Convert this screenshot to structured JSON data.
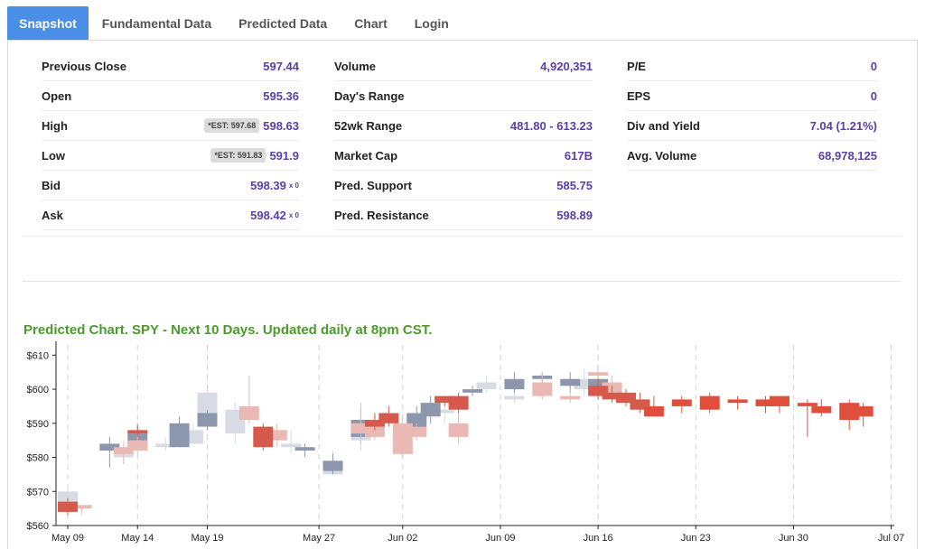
{
  "tabs": [
    {
      "label": "Snapshot",
      "active": true
    },
    {
      "label": "Fundamental Data",
      "active": false
    },
    {
      "label": "Predicted Data",
      "active": false
    },
    {
      "label": "Chart",
      "active": false
    },
    {
      "label": "Login",
      "active": false
    }
  ],
  "snapshot": {
    "col1": [
      {
        "label": "Previous Close",
        "value": "597.44"
      },
      {
        "label": "Open",
        "value": "595.36"
      },
      {
        "label": "High",
        "value": "598.63",
        "est": "*EST: 597.68"
      },
      {
        "label": "Low",
        "value": "591.9",
        "est": "*EST: 591.83"
      },
      {
        "label": "Bid",
        "value": "598.39",
        "sub": "x 0"
      },
      {
        "label": "Ask",
        "value": "598.42",
        "sub": "x 0"
      }
    ],
    "col2": [
      {
        "label": "Volume",
        "value": "4,920,351"
      },
      {
        "label": "Day's Range",
        "value": ""
      },
      {
        "label": "52wk Range",
        "value": "481.80 - 613.23"
      },
      {
        "label": "Market Cap",
        "value": "617B"
      },
      {
        "label": "Pred. Support",
        "value": "585.75"
      },
      {
        "label": "Pred. Resistance",
        "value": "598.89"
      }
    ],
    "col3": [
      {
        "label": "P/E",
        "value": "0"
      },
      {
        "label": "EPS",
        "value": "0"
      },
      {
        "label": "Div and Yield",
        "value": "7.04 (1.21%)"
      },
      {
        "label": "Avg. Volume",
        "value": "68,978,125"
      }
    ]
  },
  "chart_title": "Predicted Chart. SPY - Next 10 Days. Updated daily at 8pm CST.",
  "chart_data": {
    "type": "candlestick",
    "title": "Predicted Chart. SPY - Next 10 Days. Updated daily at 8pm CST.",
    "y_ticks": [
      "$560",
      "$570",
      "$580",
      "$590",
      "$600",
      "$610"
    ],
    "ylim": [
      560,
      613
    ],
    "x_ticks": [
      {
        "label": "May 09",
        "day": 0
      },
      {
        "label": "May 14",
        "day": 5
      },
      {
        "label": "May 19",
        "day": 10
      },
      {
        "label": "May 27",
        "day": 18
      },
      {
        "label": "Jun 02",
        "day": 24
      },
      {
        "label": "Jun 09",
        "day": 31
      },
      {
        "label": "Jun 16",
        "day": 38
      },
      {
        "label": "Jun 23",
        "day": 45
      },
      {
        "label": "Jun 30",
        "day": 52
      },
      {
        "label": "Jul 07",
        "day": 59
      }
    ],
    "dashed_grid_days": [
      0,
      5,
      10,
      18,
      24,
      31,
      38,
      45,
      52,
      59
    ],
    "colors": {
      "blue": "#8c97ad",
      "light_blue": "#d7dbe3",
      "red": "#d55a4c",
      "light_red": "#eab9b3",
      "bright_red": "#e04f3c"
    },
    "series": [
      {
        "name": "",
        "color": "light_blue",
        "candles": [
          {
            "day": 0,
            "o": 566,
            "c": 570,
            "h": 571,
            "l": 563
          },
          {
            "day": 1,
            "o": 565,
            "c": 566,
            "h": 566,
            "l": 563
          },
          {
            "day": 4,
            "o": 580,
            "c": 582,
            "h": 585,
            "l": 578
          },
          {
            "day": 7,
            "o": 583,
            "c": 584,
            "h": 586,
            "l": 582
          },
          {
            "day": 9,
            "o": 584,
            "c": 588,
            "h": 590,
            "l": 584
          },
          {
            "day": 10,
            "o": 590,
            "c": 599,
            "h": 600,
            "l": 588
          },
          {
            "day": 12,
            "o": 587,
            "c": 594,
            "h": 596,
            "l": 584
          },
          {
            "day": 16,
            "o": 583,
            "c": 584,
            "h": 588,
            "l": 581
          },
          {
            "day": 19,
            "o": 575,
            "c": 576,
            "h": 582,
            "l": 575
          },
          {
            "day": 21,
            "o": 585,
            "c": 590,
            "h": 595,
            "l": 582
          },
          {
            "day": 24,
            "o": 581,
            "c": 583,
            "h": 587,
            "l": 580
          },
          {
            "day": 27,
            "o": 593,
            "c": 594,
            "h": 597,
            "l": 590
          },
          {
            "day": 30,
            "o": 600,
            "c": 602,
            "h": 604,
            "l": 599
          },
          {
            "day": 32,
            "o": 597,
            "c": 598,
            "h": 600,
            "l": 596
          },
          {
            "day": 37,
            "o": 600,
            "c": 603,
            "h": 606,
            "l": 598
          }
        ]
      },
      {
        "name": "",
        "color": "blue",
        "candles": [
          {
            "day": 3,
            "o": 582,
            "c": 584,
            "h": 586,
            "l": 577
          },
          {
            "day": 5,
            "o": 583,
            "c": 587,
            "h": 590,
            "l": 582
          },
          {
            "day": 8,
            "o": 583,
            "c": 590,
            "h": 592,
            "l": 583
          },
          {
            "day": 10,
            "o": 589,
            "c": 593,
            "h": 594,
            "l": 588
          },
          {
            "day": 17,
            "o": 582,
            "c": 583,
            "h": 584,
            "l": 580
          },
          {
            "day": 19,
            "o": 576,
            "c": 579,
            "h": 581,
            "l": 575
          },
          {
            "day": 21,
            "o": 586,
            "c": 591,
            "h": 594,
            "l": 584
          },
          {
            "day": 25,
            "o": 588,
            "c": 593,
            "h": 595,
            "l": 586
          },
          {
            "day": 26,
            "o": 592,
            "c": 596,
            "h": 598,
            "l": 590
          },
          {
            "day": 29,
            "o": 599,
            "c": 600,
            "h": 601,
            "l": 598
          },
          {
            "day": 32,
            "o": 600,
            "c": 603,
            "h": 605,
            "l": 599
          },
          {
            "day": 34,
            "o": 603,
            "c": 604,
            "h": 605,
            "l": 600
          },
          {
            "day": 36,
            "o": 601,
            "c": 603,
            "h": 605,
            "l": 599
          },
          {
            "day": 38,
            "o": 600,
            "c": 603,
            "h": 604,
            "l": 598
          }
        ]
      },
      {
        "name": "",
        "color": "light_red",
        "candles": [
          {
            "day": 1,
            "o": 566,
            "c": 565,
            "h": 566,
            "l": 564
          },
          {
            "day": 4,
            "o": 583,
            "c": 581,
            "h": 584,
            "l": 578
          },
          {
            "day": 5,
            "o": 585,
            "c": 582,
            "h": 587,
            "l": 581
          },
          {
            "day": 13,
            "o": 595,
            "c": 591,
            "h": 604,
            "l": 590
          },
          {
            "day": 15,
            "o": 588,
            "c": 585,
            "h": 590,
            "l": 583
          },
          {
            "day": 21,
            "o": 590,
            "c": 587,
            "h": 596,
            "l": 584
          },
          {
            "day": 22,
            "o": 589,
            "c": 586,
            "h": 592,
            "l": 585
          },
          {
            "day": 24,
            "o": 590,
            "c": 581,
            "h": 592,
            "l": 580
          },
          {
            "day": 25,
            "o": 589,
            "c": 586,
            "h": 590,
            "l": 585
          },
          {
            "day": 28,
            "o": 590,
            "c": 586,
            "h": 593,
            "l": 584
          },
          {
            "day": 34,
            "o": 602,
            "c": 598,
            "h": 605,
            "l": 597
          },
          {
            "day": 36,
            "o": 598,
            "c": 597,
            "h": 600,
            "l": 596
          },
          {
            "day": 38,
            "o": 605,
            "c": 604,
            "h": 607,
            "l": 603
          },
          {
            "day": 39,
            "o": 602,
            "c": 598,
            "h": 604,
            "l": 597
          }
        ]
      },
      {
        "name": "",
        "color": "red",
        "candles": [
          {
            "day": 0,
            "o": 567,
            "c": 564,
            "h": 568,
            "l": 563
          },
          {
            "day": 5,
            "o": 588,
            "c": 587,
            "h": 589,
            "l": 586
          },
          {
            "day": 14,
            "o": 589,
            "c": 583,
            "h": 590,
            "l": 582
          },
          {
            "day": 22,
            "o": 591,
            "c": 589,
            "h": 593,
            "l": 588
          },
          {
            "day": 23,
            "o": 593,
            "c": 590,
            "h": 595,
            "l": 589
          },
          {
            "day": 27,
            "o": 598,
            "c": 596,
            "h": 598,
            "l": 595
          },
          {
            "day": 28,
            "o": 598,
            "c": 594,
            "h": 599,
            "l": 593
          },
          {
            "day": 38,
            "o": 601,
            "c": 598,
            "h": 603,
            "l": 597
          },
          {
            "day": 39,
            "o": 599,
            "c": 597,
            "h": 601,
            "l": 596
          },
          {
            "day": 40,
            "o": 599,
            "c": 596,
            "h": 600,
            "l": 595
          },
          {
            "day": 41,
            "o": 597,
            "c": 594,
            "h": 599,
            "l": 593
          }
        ]
      },
      {
        "name": "",
        "color": "bright_red",
        "candles": [
          {
            "day": 42,
            "o": 595,
            "c": 592,
            "h": 598,
            "l": 592
          },
          {
            "day": 44,
            "o": 597,
            "c": 595,
            "h": 598,
            "l": 593
          },
          {
            "day": 46,
            "o": 598,
            "c": 594,
            "h": 599,
            "l": 593
          },
          {
            "day": 48,
            "o": 597,
            "c": 596,
            "h": 598,
            "l": 594
          },
          {
            "day": 50,
            "o": 597,
            "c": 595,
            "h": 598,
            "l": 593
          },
          {
            "day": 51,
            "o": 598,
            "c": 595,
            "h": 598,
            "l": 593
          },
          {
            "day": 53,
            "o": 596,
            "c": 595,
            "h": 597,
            "l": 586
          },
          {
            "day": 54,
            "o": 595,
            "c": 593,
            "h": 597,
            "l": 592
          },
          {
            "day": 56,
            "o": 596,
            "c": 591,
            "h": 597,
            "l": 588
          },
          {
            "day": 57,
            "o": 595,
            "c": 592,
            "h": 596,
            "l": 589
          }
        ]
      }
    ]
  }
}
